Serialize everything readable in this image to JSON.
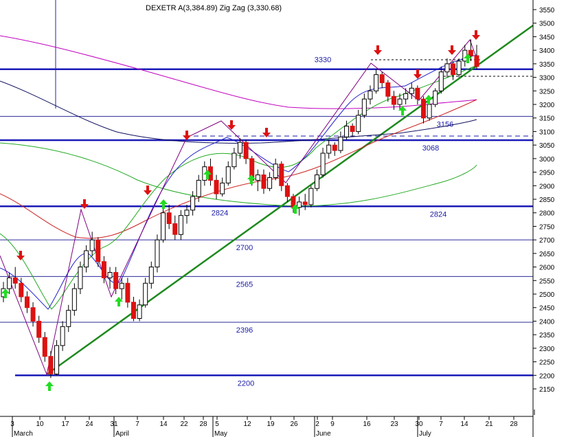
{
  "chart_data": {
    "type": "candlestick",
    "title": "DEXETR A(3,384.89) Zig Zag (3,330.68)",
    "y_range": [
      2100,
      3575
    ],
    "y_ticks": [
      2150,
      2200,
      2250,
      2300,
      2350,
      2400,
      2450,
      2500,
      2550,
      2600,
      2650,
      2700,
      2750,
      2800,
      2850,
      2900,
      2950,
      3000,
      3050,
      3100,
      3150,
      3200,
      3250,
      3300,
      3350,
      3400,
      3450,
      3500,
      3550
    ],
    "x_day_ticks": [
      "3",
      "10",
      "17",
      "24",
      "31",
      "7",
      "14",
      "22",
      "28",
      "5",
      "12",
      "19",
      "26",
      "2",
      "9",
      "16",
      "23",
      "30",
      "7",
      "14",
      "21",
      "28"
    ],
    "x_months": [
      "March",
      "April",
      "May",
      "June",
      "July"
    ],
    "levels": [
      {
        "value": 3330,
        "label": "3330",
        "style": "thick"
      },
      {
        "value": 3156,
        "label": "3156",
        "style": "thin"
      },
      {
        "value": 3068,
        "label": "3068",
        "style": "thick"
      },
      {
        "value": 2824,
        "label": "2824",
        "style": "thick"
      },
      {
        "value": 2824,
        "label": "2824",
        "style": "label-left"
      },
      {
        "value": 2700,
        "label": "2700",
        "style": "thin"
      },
      {
        "value": 2565,
        "label": "2565",
        "style": "thin"
      },
      {
        "value": 2396,
        "label": "2396",
        "style": "thin"
      },
      {
        "value": 2200,
        "label": "2200",
        "style": "thick"
      }
    ],
    "candles": [
      [
        2490,
        2545,
        2470,
        2520
      ],
      [
        2520,
        2580,
        2500,
        2560
      ],
      [
        2560,
        2600,
        2520,
        2540
      ],
      [
        2540,
        2560,
        2470,
        2490
      ],
      [
        2490,
        2510,
        2430,
        2450
      ],
      [
        2450,
        2470,
        2380,
        2400
      ],
      [
        2400,
        2420,
        2320,
        2340
      ],
      [
        2340,
        2360,
        2250,
        2270
      ],
      [
        2270,
        2290,
        2190,
        2205
      ],
      [
        2205,
        2330,
        2200,
        2310
      ],
      [
        2310,
        2400,
        2290,
        2380
      ],
      [
        2380,
        2460,
        2360,
        2440
      ],
      [
        2440,
        2540,
        2420,
        2520
      ],
      [
        2520,
        2620,
        2500,
        2600
      ],
      [
        2600,
        2680,
        2580,
        2660
      ],
      [
        2660,
        2730,
        2640,
        2700
      ],
      [
        2700,
        2710,
        2600,
        2620
      ],
      [
        2620,
        2640,
        2540,
        2560
      ],
      [
        2560,
        2600,
        2520,
        2580
      ],
      [
        2580,
        2600,
        2500,
        2520
      ],
      [
        2520,
        2560,
        2480,
        2540
      ],
      [
        2540,
        2560,
        2450,
        2470
      ],
      [
        2470,
        2490,
        2400,
        2410
      ],
      [
        2410,
        2480,
        2400,
        2460
      ],
      [
        2460,
        2560,
        2450,
        2540
      ],
      [
        2540,
        2620,
        2520,
        2600
      ],
      [
        2600,
        2720,
        2580,
        2700
      ],
      [
        2700,
        2820,
        2690,
        2800
      ],
      [
        2800,
        2830,
        2740,
        2760
      ],
      [
        2760,
        2790,
        2700,
        2720
      ],
      [
        2720,
        2810,
        2700,
        2790
      ],
      [
        2790,
        2830,
        2760,
        2810
      ],
      [
        2810,
        2880,
        2790,
        2860
      ],
      [
        2860,
        2940,
        2840,
        2920
      ],
      [
        2920,
        2990,
        2900,
        2970
      ],
      [
        2970,
        3000,
        2900,
        2920
      ],
      [
        2920,
        2940,
        2850,
        2870
      ],
      [
        2870,
        2930,
        2860,
        2910
      ],
      [
        2910,
        2990,
        2900,
        2970
      ],
      [
        2970,
        3040,
        2960,
        3020
      ],
      [
        3020,
        3075,
        3000,
        3060
      ],
      [
        3060,
        3070,
        2980,
        3000
      ],
      [
        3000,
        3010,
        2900,
        2920
      ],
      [
        2920,
        2960,
        2880,
        2940
      ],
      [
        2940,
        2960,
        2870,
        2890
      ],
      [
        2890,
        2950,
        2880,
        2930
      ],
      [
        2930,
        3000,
        2920,
        2980
      ],
      [
        2980,
        2990,
        2880,
        2900
      ],
      [
        2900,
        2910,
        2840,
        2860
      ],
      [
        2860,
        2870,
        2800,
        2820
      ],
      [
        2820,
        2860,
        2790,
        2840
      ],
      [
        2840,
        2870,
        2810,
        2830
      ],
      [
        2830,
        2900,
        2820,
        2890
      ],
      [
        2890,
        2960,
        2880,
        2940
      ],
      [
        2940,
        3040,
        2930,
        3020
      ],
      [
        3020,
        3070,
        3000,
        3050
      ],
      [
        3050,
        3060,
        3010,
        3030
      ],
      [
        3030,
        3100,
        3020,
        3080
      ],
      [
        3080,
        3140,
        3070,
        3120
      ],
      [
        3120,
        3130,
        3080,
        3100
      ],
      [
        3100,
        3180,
        3090,
        3160
      ],
      [
        3160,
        3240,
        3150,
        3220
      ],
      [
        3220,
        3270,
        3200,
        3250
      ],
      [
        3250,
        3330,
        3240,
        3310
      ],
      [
        3310,
        3320,
        3260,
        3280
      ],
      [
        3280,
        3290,
        3210,
        3230
      ],
      [
        3230,
        3250,
        3180,
        3200
      ],
      [
        3200,
        3240,
        3180,
        3220
      ],
      [
        3220,
        3260,
        3200,
        3240
      ],
      [
        3240,
        3280,
        3220,
        3260
      ],
      [
        3260,
        3270,
        3200,
        3220
      ],
      [
        3220,
        3230,
        3130,
        3150
      ],
      [
        3150,
        3210,
        3140,
        3200
      ],
      [
        3200,
        3260,
        3190,
        3250
      ],
      [
        3250,
        3340,
        3240,
        3320
      ],
      [
        3320,
        3370,
        3300,
        3350
      ],
      [
        3350,
        3360,
        3290,
        3310
      ],
      [
        3310,
        3370,
        3300,
        3360
      ],
      [
        3360,
        3420,
        3340,
        3400
      ],
      [
        3400,
        3440,
        3360,
        3380
      ],
      [
        3380,
        3420,
        3330,
        3340
      ]
    ]
  }
}
